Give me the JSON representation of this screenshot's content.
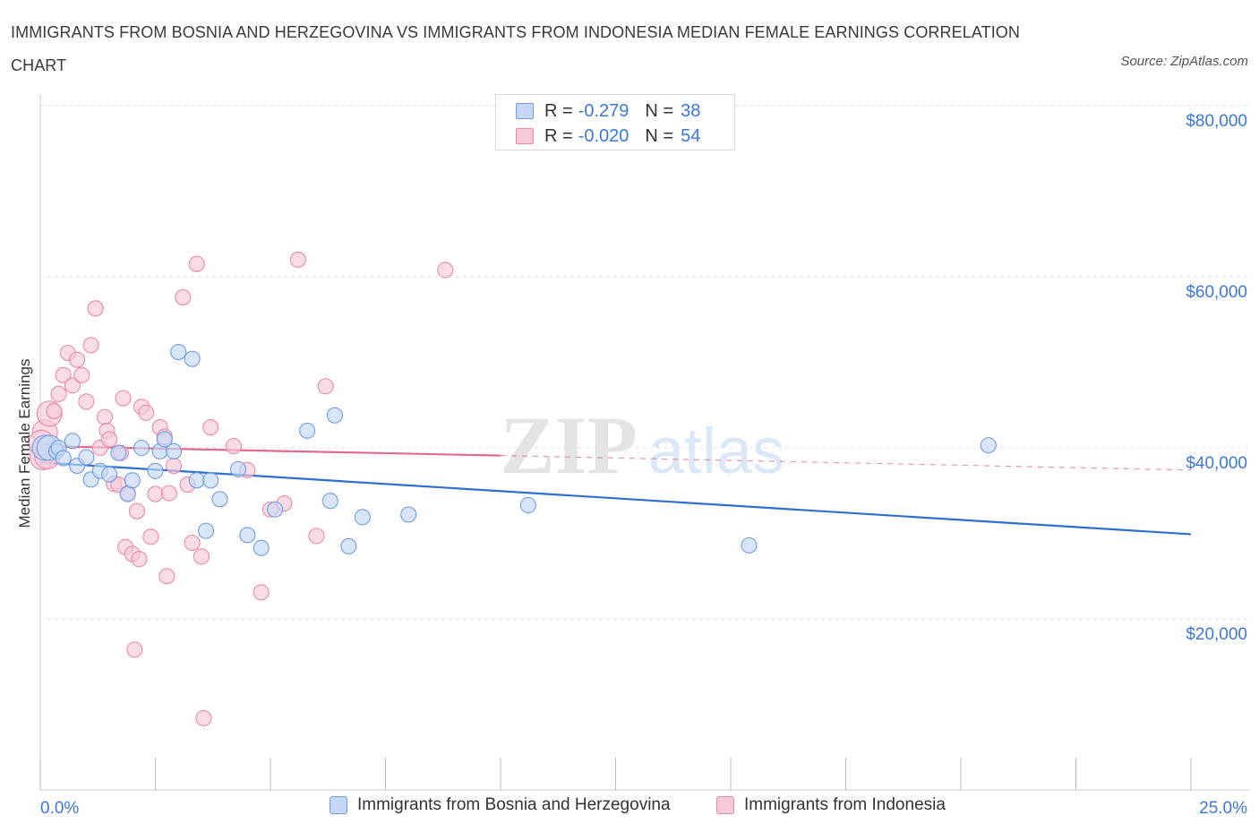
{
  "title": "IMMIGRANTS FROM BOSNIA AND HERZEGOVINA VS IMMIGRANTS FROM INDONESIA MEDIAN FEMALE EARNINGS CORRELATION CHART",
  "source": "Source: ZipAtlas.com",
  "watermark": {
    "zip": "ZIP",
    "atlas": "atlas"
  },
  "colors": {
    "blue_fill": "#c5d8f7",
    "blue_stroke": "#6f9de0",
    "blue_line": "#2f6fd0",
    "pink_fill": "#f8c9d8",
    "pink_stroke": "#e98aa8",
    "pink_line": "#e06a90",
    "axis_label": "#3c78d8",
    "grid": "#dddddd"
  },
  "legend": {
    "blue": {
      "r_label": "R =",
      "r_value": "-0.279",
      "n_label": "N =",
      "n_value": "38"
    },
    "pink": {
      "r_label": "R =",
      "r_value": "-0.020",
      "n_label": "N =",
      "n_value": "54"
    }
  },
  "chart_data": {
    "type": "scatter",
    "title": "IMMIGRANTS FROM BOSNIA AND HERZEGOVINA VS IMMIGRANTS FROM INDONESIA MEDIAN FEMALE EARNINGS CORRELATION CHART",
    "xlabel": "",
    "ylabel": "Median Female Earnings",
    "xlim": [
      0,
      25
    ],
    "ylim": [
      0,
      80000
    ],
    "x_tick_labels": [
      "0.0%",
      "25.0%"
    ],
    "y_ticks": [
      20000,
      40000,
      60000,
      80000
    ],
    "y_tick_labels": [
      "$20,000",
      "$40,000",
      "$60,000",
      "$80,000"
    ],
    "legend_position": "top-center",
    "series": [
      {
        "name": "Immigrants from Bosnia and Herzegovina",
        "color": "blue",
        "R": -0.279,
        "N": 38,
        "trend": {
          "x": [
            0,
            25
          ],
          "y": [
            38300,
            29900
          ],
          "dashed_to": null
        },
        "points": [
          [
            0.1,
            40000
          ],
          [
            0.2,
            40000
          ],
          [
            0.35,
            39600
          ],
          [
            0.4,
            40000
          ],
          [
            0.5,
            38800
          ],
          [
            0.7,
            40800
          ],
          [
            0.8,
            37900
          ],
          [
            1.0,
            38900
          ],
          [
            1.1,
            36300
          ],
          [
            1.3,
            37300
          ],
          [
            1.5,
            36900
          ],
          [
            1.7,
            39400
          ],
          [
            1.9,
            34600
          ],
          [
            2.0,
            36200
          ],
          [
            2.2,
            40000
          ],
          [
            2.5,
            37300
          ],
          [
            2.6,
            39600
          ],
          [
            2.7,
            41000
          ],
          [
            2.9,
            39600
          ],
          [
            3.0,
            51200
          ],
          [
            3.3,
            50400
          ],
          [
            3.4,
            36200
          ],
          [
            3.6,
            30300
          ],
          [
            3.7,
            36200
          ],
          [
            3.9,
            34000
          ],
          [
            4.3,
            37500
          ],
          [
            4.5,
            29800
          ],
          [
            4.8,
            28300
          ],
          [
            5.1,
            32800
          ],
          [
            5.8,
            42000
          ],
          [
            6.3,
            33800
          ],
          [
            6.4,
            43800
          ],
          [
            6.7,
            28500
          ],
          [
            7.0,
            31900
          ],
          [
            8.0,
            32200
          ],
          [
            10.6,
            33300
          ],
          [
            15.4,
            28600
          ],
          [
            20.6,
            40300
          ]
        ]
      },
      {
        "name": "Immigrants from Indonesia",
        "color": "pink",
        "R": -0.02,
        "N": 54,
        "trend": {
          "x": [
            0,
            10
          ],
          "y": [
            40200,
            39100
          ],
          "dashed_to": {
            "x": 25,
            "y": 37400
          }
        },
        "points": [
          [
            0.05,
            38900
          ],
          [
            0.1,
            41800
          ],
          [
            0.2,
            44000
          ],
          [
            0.3,
            44300
          ],
          [
            0.4,
            46300
          ],
          [
            0.5,
            48500
          ],
          [
            0.6,
            51100
          ],
          [
            0.7,
            47300
          ],
          [
            0.8,
            50300
          ],
          [
            0.9,
            48500
          ],
          [
            1.0,
            45400
          ],
          [
            1.1,
            52000
          ],
          [
            1.2,
            56300
          ],
          [
            1.3,
            40000
          ],
          [
            1.4,
            43600
          ],
          [
            1.45,
            42000
          ],
          [
            1.5,
            41000
          ],
          [
            1.6,
            35800
          ],
          [
            1.7,
            35700
          ],
          [
            1.75,
            39400
          ],
          [
            1.8,
            45800
          ],
          [
            1.85,
            28400
          ],
          [
            1.9,
            34700
          ],
          [
            2.0,
            27600
          ],
          [
            2.05,
            16400
          ],
          [
            2.1,
            32600
          ],
          [
            2.15,
            27000
          ],
          [
            2.2,
            44800
          ],
          [
            2.3,
            44100
          ],
          [
            2.4,
            29600
          ],
          [
            2.5,
            34600
          ],
          [
            2.6,
            42400
          ],
          [
            2.7,
            41300
          ],
          [
            2.75,
            25000
          ],
          [
            2.8,
            34700
          ],
          [
            2.9,
            37900
          ],
          [
            3.1,
            57600
          ],
          [
            3.2,
            35700
          ],
          [
            3.3,
            28900
          ],
          [
            3.4,
            61500
          ],
          [
            3.5,
            27300
          ],
          [
            3.55,
            8400
          ],
          [
            3.7,
            42400
          ],
          [
            4.2,
            40200
          ],
          [
            4.5,
            37400
          ],
          [
            4.8,
            23100
          ],
          [
            5.0,
            32800
          ],
          [
            5.3,
            33500
          ],
          [
            5.6,
            62000
          ],
          [
            6.0,
            29700
          ],
          [
            6.2,
            47200
          ],
          [
            8.8,
            60800
          ],
          [
            0.02,
            40600
          ],
          [
            0.15,
            39000
          ]
        ]
      }
    ]
  },
  "bottom_legend": {
    "blue_label": "Immigrants from Bosnia and Herzegovina",
    "pink_label": "Immigrants from Indonesia"
  }
}
